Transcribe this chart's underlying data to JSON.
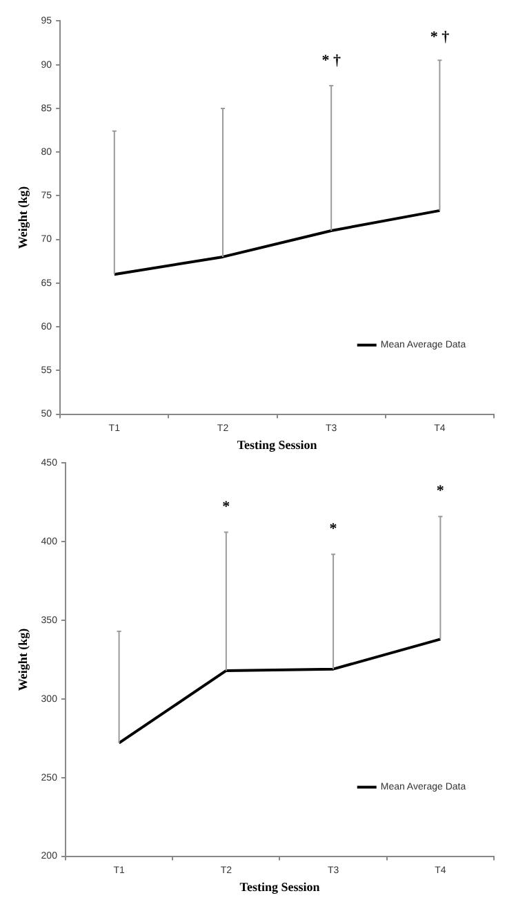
{
  "chart_data": [
    {
      "type": "line",
      "xlabel": "Testing Session",
      "ylabel": "Weight (kg)",
      "categories": [
        "T1",
        "T2",
        "T3",
        "T4"
      ],
      "series": [
        {
          "name": "Mean Average Data",
          "color": "#000000",
          "values": [
            66,
            68,
            71,
            73.3
          ],
          "errors": [
            [
              66,
              82.4
            ],
            [
              68,
              85
            ],
            [
              71,
              87.6
            ],
            [
              73.3,
              90.5
            ]
          ]
        }
      ],
      "ylim": [
        50,
        95
      ],
      "yticks": [
        50,
        55,
        60,
        65,
        70,
        75,
        80,
        85,
        90,
        95
      ],
      "grid": false,
      "legend": "bottom right",
      "marker": "none",
      "line_style": "solid",
      "annotations": [
        "* †",
        "* †"
      ]
    },
    {
      "type": "line",
      "xlabel": "Testing Session",
      "ylabel": "Weight (kg)",
      "categories": [
        "T1",
        "T2",
        "T3",
        "T4"
      ],
      "series": [
        {
          "name": "Mean Average Data",
          "color": "#000000",
          "values": [
            272,
            318,
            319,
            338
          ],
          "errors": [
            [
              272,
              343
            ],
            [
              318,
              406
            ],
            [
              319,
              392
            ],
            [
              338,
              416
            ]
          ]
        }
      ],
      "ylim": [
        200,
        450
      ],
      "yticks": [
        200,
        250,
        300,
        350,
        400,
        450
      ],
      "grid": false,
      "legend": "bottom right",
      "marker": "none",
      "line_style": "solid",
      "annotations": [
        "*",
        "*",
        "*"
      ]
    }
  ]
}
